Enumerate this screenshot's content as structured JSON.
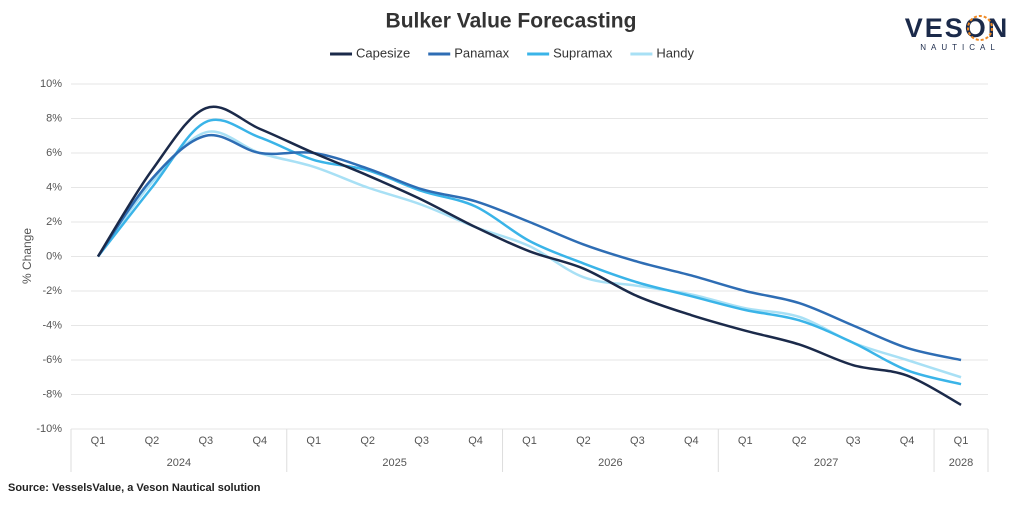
{
  "chart_data": {
    "type": "line",
    "title": "Bulker Value Forecasting",
    "logo": {
      "name": "VESON",
      "tagline": "NAUTICAL"
    },
    "y_label": "% Change",
    "source": "Source: VesselsValue, a Veson Nautical solution",
    "categories": [
      "Q1",
      "Q2",
      "Q3",
      "Q4",
      "Q1",
      "Q2",
      "Q3",
      "Q4",
      "Q1",
      "Q2",
      "Q3",
      "Q4",
      "Q1",
      "Q2",
      "Q3",
      "Q4",
      "Q1"
    ],
    "category_groups": [
      "2024",
      null,
      null,
      null,
      "2025",
      null,
      null,
      null,
      "2026",
      null,
      null,
      null,
      "2027",
      null,
      null,
      null,
      "2028"
    ],
    "series": [
      {
        "name": "Capesize",
        "color": "#1b2a4a",
        "values": [
          0,
          5.0,
          8.6,
          7.4,
          6.0,
          4.7,
          3.3,
          1.7,
          0.3,
          -0.7,
          -2.3,
          -3.4,
          -4.3,
          -5.1,
          -6.3,
          -6.9,
          -8.6
        ]
      },
      {
        "name": "Panamax",
        "color": "#2e6db4",
        "values": [
          0,
          4.5,
          7.0,
          6.0,
          6.0,
          5.1,
          3.9,
          3.2,
          2.0,
          0.7,
          -0.3,
          -1.1,
          -2.0,
          -2.7,
          -4.0,
          -5.3,
          -6.0
        ]
      },
      {
        "name": "Supramax",
        "color": "#3ab4e8",
        "values": [
          0,
          4.0,
          7.8,
          6.9,
          5.6,
          5.0,
          3.8,
          2.9,
          0.9,
          -0.4,
          -1.5,
          -2.3,
          -3.1,
          -3.7,
          -5.0,
          -6.6,
          -7.4
        ]
      },
      {
        "name": "Handy",
        "color": "#a8e0f5",
        "values": [
          0,
          4.3,
          7.2,
          6.0,
          5.2,
          4.0,
          3.0,
          1.7,
          0.6,
          -1.2,
          -1.7,
          -2.2,
          -3.0,
          -3.5,
          -5.0,
          -6.0,
          -7.0
        ]
      }
    ],
    "ylim": [
      -10,
      10
    ],
    "yticks": [
      {
        "value": -10,
        "label": "-10%"
      },
      {
        "value": -8,
        "label": "-8%"
      },
      {
        "value": -6,
        "label": "-6%"
      },
      {
        "value": -4,
        "label": "-4%"
      },
      {
        "value": -2,
        "label": "-2%"
      },
      {
        "value": 0,
        "label": "0%"
      },
      {
        "value": 2,
        "label": "2%"
      },
      {
        "value": 4,
        "label": "4%"
      },
      {
        "value": 6,
        "label": "6%"
      },
      {
        "value": 8,
        "label": "8%"
      },
      {
        "value": 10,
        "label": "10%"
      }
    ],
    "grid": true,
    "legend": "top"
  }
}
